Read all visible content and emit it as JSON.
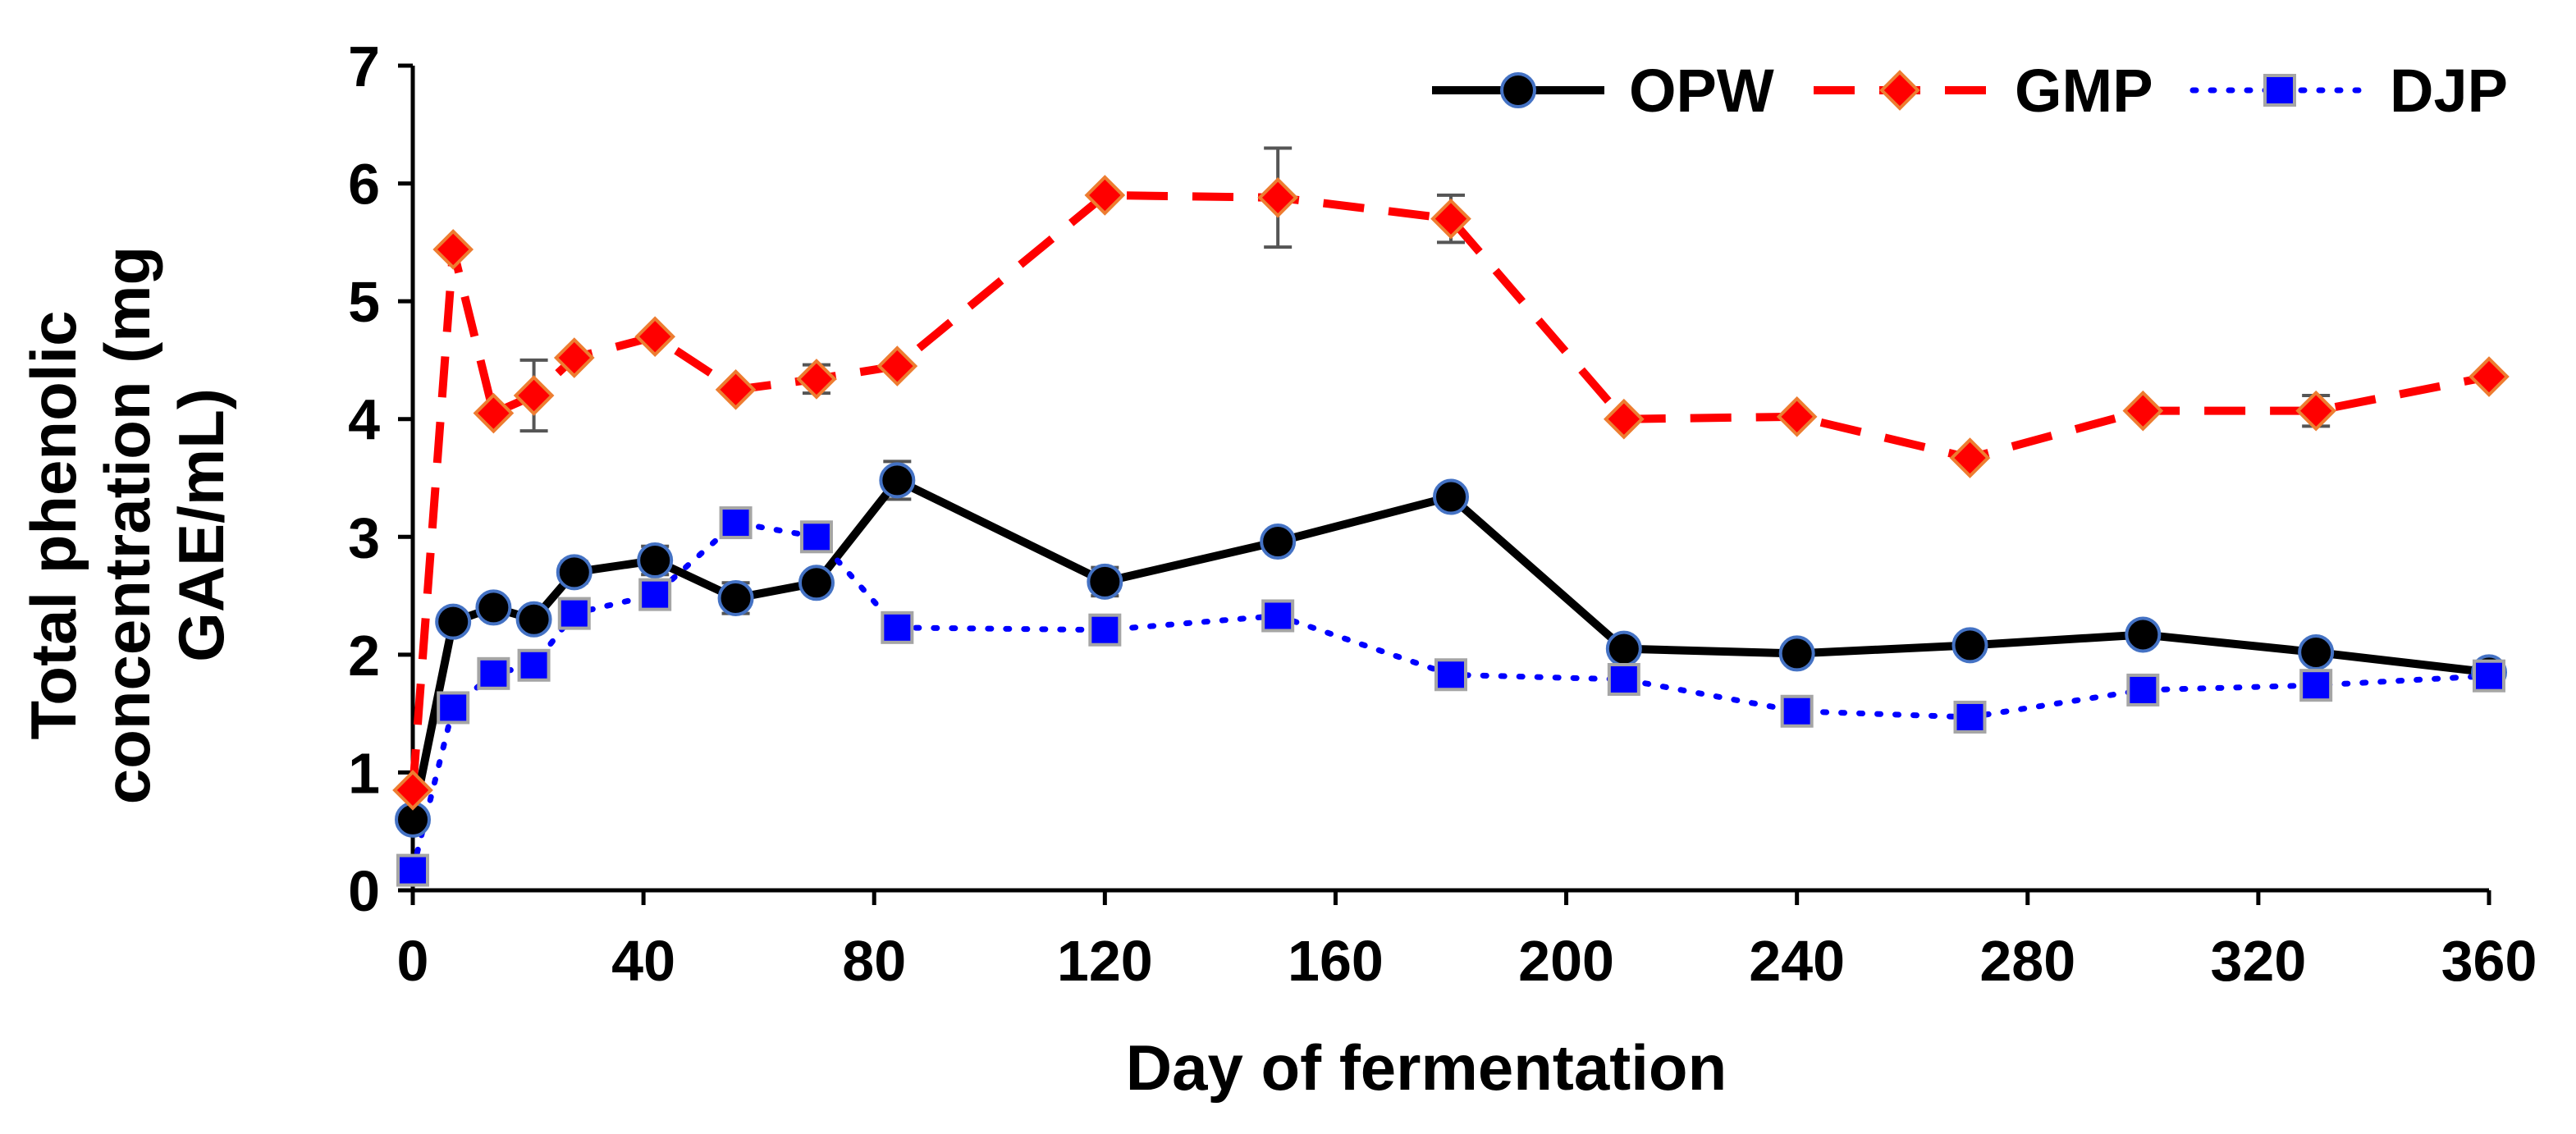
{
  "chart_data": {
    "type": "line",
    "title": "",
    "xlabel": "Day of fermentation",
    "ylabel_lines": [
      "Total phenolic",
      "concentration (mg",
      "GAE/mL)"
    ],
    "xlim": [
      0,
      360
    ],
    "ylim": [
      0,
      7
    ],
    "x_ticks": [
      0,
      40,
      80,
      120,
      160,
      200,
      240,
      280,
      320,
      360
    ],
    "y_ticks": [
      0,
      1,
      2,
      3,
      4,
      5,
      6,
      7
    ],
    "grid": false,
    "legend_position": "top-right",
    "series": [
      {
        "name": "OPW",
        "color": "#000000",
        "marker_fill": "#000000",
        "marker_edge": "#4472c4",
        "marker": "circle",
        "line_style": "solid",
        "points": [
          {
            "x": 0,
            "y": 0.6
          },
          {
            "x": 7,
            "y": 2.28
          },
          {
            "x": 14,
            "y": 2.4
          },
          {
            "x": 21,
            "y": 2.3
          },
          {
            "x": 28,
            "y": 2.7
          },
          {
            "x": 42,
            "y": 2.8
          },
          {
            "x": 56,
            "y": 2.48
          },
          {
            "x": 70,
            "y": 2.61
          },
          {
            "x": 84,
            "y": 3.48
          },
          {
            "x": 120,
            "y": 2.62
          },
          {
            "x": 150,
            "y": 2.96
          },
          {
            "x": 180,
            "y": 3.34
          },
          {
            "x": 210,
            "y": 2.05
          },
          {
            "x": 240,
            "y": 2.01
          },
          {
            "x": 270,
            "y": 2.08
          },
          {
            "x": 300,
            "y": 2.17
          },
          {
            "x": 330,
            "y": 2.02
          },
          {
            "x": 360,
            "y": 1.85
          }
        ],
        "errors": [
          {
            "x": 28,
            "err": 0.09
          },
          {
            "x": 42,
            "err": 0.12
          },
          {
            "x": 56,
            "err": 0.13
          },
          {
            "x": 84,
            "err": 0.16
          },
          {
            "x": 120,
            "err": 0.12
          },
          {
            "x": 330,
            "err": 0.06
          }
        ]
      },
      {
        "name": "GMP",
        "color": "#ff0000",
        "marker_fill": "#ff0000",
        "marker_edge": "#ed7d31",
        "marker": "diamond",
        "line_style": "dashed",
        "points": [
          {
            "x": 0,
            "y": 0.85
          },
          {
            "x": 7,
            "y": 5.44
          },
          {
            "x": 14,
            "y": 4.05
          },
          {
            "x": 21,
            "y": 4.2
          },
          {
            "x": 28,
            "y": 4.52
          },
          {
            "x": 42,
            "y": 4.7
          },
          {
            "x": 56,
            "y": 4.25
          },
          {
            "x": 70,
            "y": 4.34
          },
          {
            "x": 84,
            "y": 4.45
          },
          {
            "x": 120,
            "y": 5.9
          },
          {
            "x": 150,
            "y": 5.88
          },
          {
            "x": 180,
            "y": 5.7
          },
          {
            "x": 210,
            "y": 4.0
          },
          {
            "x": 240,
            "y": 4.02
          },
          {
            "x": 270,
            "y": 3.67
          },
          {
            "x": 300,
            "y": 4.07
          },
          {
            "x": 330,
            "y": 4.07
          },
          {
            "x": 360,
            "y": 4.36
          }
        ],
        "errors": [
          {
            "x": 21,
            "err": 0.3
          },
          {
            "x": 70,
            "err": 0.12
          },
          {
            "x": 150,
            "err": 0.42
          },
          {
            "x": 180,
            "err": 0.2
          },
          {
            "x": 330,
            "err": 0.13
          }
        ]
      },
      {
        "name": "DJP",
        "color": "#0000ff",
        "marker_fill": "#0000ff",
        "marker_edge": "#a5a5a5",
        "marker": "square",
        "line_style": "dotted",
        "points": [
          {
            "x": 0,
            "y": 0.17
          },
          {
            "x": 7,
            "y": 1.55
          },
          {
            "x": 14,
            "y": 1.84
          },
          {
            "x": 21,
            "y": 1.91
          },
          {
            "x": 28,
            "y": 2.35
          },
          {
            "x": 42,
            "y": 2.51
          },
          {
            "x": 56,
            "y": 3.12
          },
          {
            "x": 70,
            "y": 3.0
          },
          {
            "x": 84,
            "y": 2.23
          },
          {
            "x": 120,
            "y": 2.21
          },
          {
            "x": 150,
            "y": 2.33
          },
          {
            "x": 180,
            "y": 1.83
          },
          {
            "x": 210,
            "y": 1.79
          },
          {
            "x": 240,
            "y": 1.52
          },
          {
            "x": 270,
            "y": 1.47
          },
          {
            "x": 300,
            "y": 1.7
          },
          {
            "x": 330,
            "y": 1.74
          },
          {
            "x": 360,
            "y": 1.82
          }
        ],
        "errors": []
      }
    ]
  }
}
